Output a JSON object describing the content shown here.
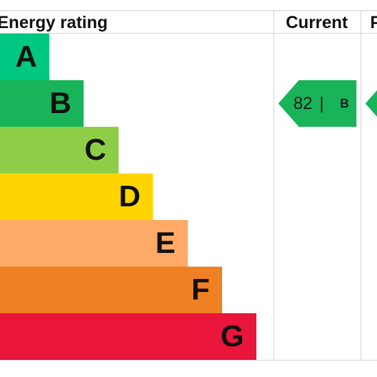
{
  "header": {
    "title": "Energy rating",
    "current_label": "Current",
    "potential_label_partial": "P"
  },
  "colors": {
    "A": "#00c781",
    "B": "#19b459",
    "C": "#8dce46",
    "D": "#ffd500",
    "E": "#fcaa65",
    "F": "#ef8023",
    "G": "#e9153b",
    "grid": "#d2d2d2"
  },
  "chart_data": {
    "type": "bar",
    "title": "Energy rating",
    "categories": [
      "A",
      "B",
      "C",
      "D",
      "E",
      "F",
      "G"
    ],
    "current": {
      "value": 82,
      "band": "B"
    },
    "potential": {
      "band": "B"
    }
  }
}
